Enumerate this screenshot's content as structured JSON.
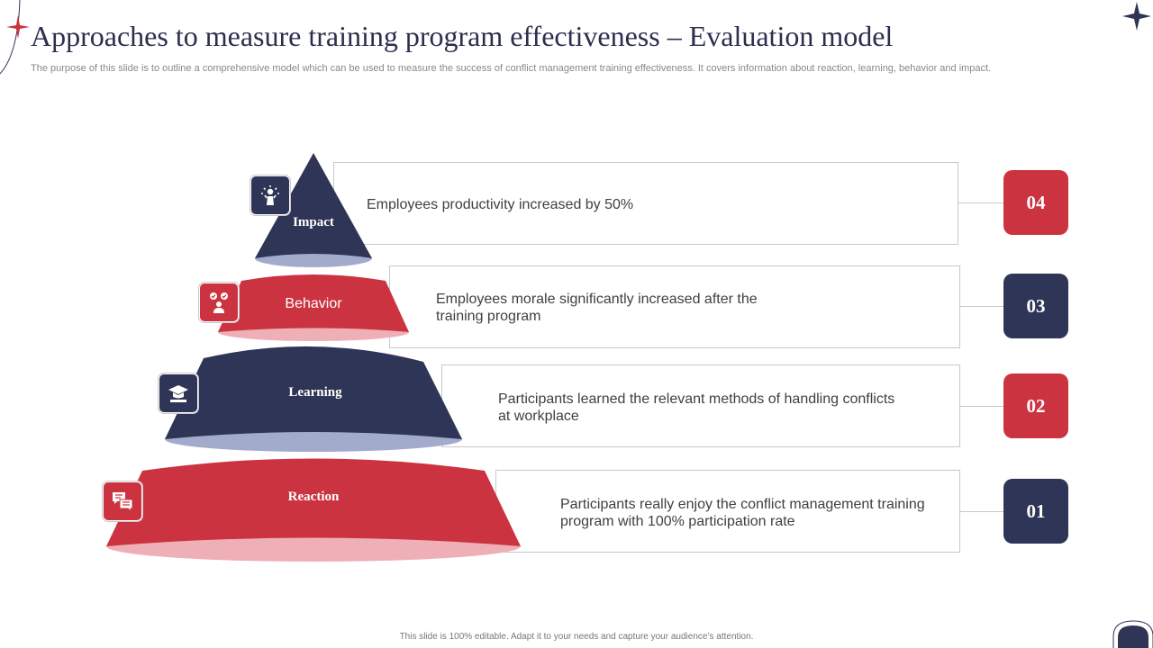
{
  "title": "Approaches to measure training program effectiveness – Evaluation model",
  "subtitle": "The purpose of this slide is to outline a comprehensive model which can be used to measure the success of conflict management training effectiveness. It covers information about reaction, learning, behavior and impact.",
  "footer": "This slide is 100% editable. Adapt it to your needs and capture your audience’s attention.",
  "colors": {
    "navy": "#2f3556",
    "red": "#cc3340",
    "navy_light": "#a3abcc",
    "red_light": "#eeb0b6"
  },
  "levels": [
    {
      "number": "04",
      "label": "Impact",
      "text_lines": [
        "Employees productivity increased by 50%"
      ],
      "icon": "lightbulb-person-icon"
    },
    {
      "number": "03",
      "label": "Behavior",
      "text_lines": [
        "Employees morale significantly increased after the",
        "training program"
      ],
      "icon": "team-check-icon"
    },
    {
      "number": "02",
      "label": "Learning",
      "text_lines": [
        "Participants learned the relevant methods of handling conflicts",
        "at workplace"
      ],
      "icon": "graduation-cap-icon"
    },
    {
      "number": "01",
      "label": "Reaction",
      "text_lines": [
        "Participants really enjoy the conflict management training",
        "program with 100% participation rate"
      ],
      "icon": "chat-bubbles-icon"
    }
  ]
}
